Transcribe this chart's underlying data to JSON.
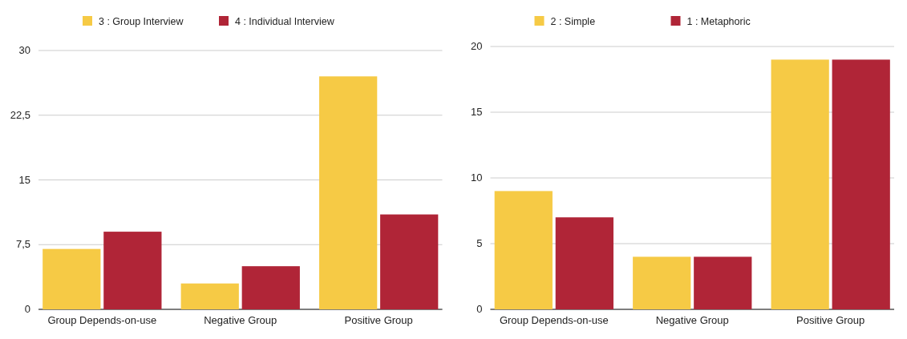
{
  "chart_data": [
    {
      "type": "bar",
      "categories": [
        "Group Depends-on-use",
        "Negative Group",
        "Positive Group"
      ],
      "series": [
        {
          "name": "3 : Group Interview",
          "color": "#f6ca45",
          "values": [
            7,
            3,
            27
          ]
        },
        {
          "name": "4 : Individual Interview",
          "color": "#b02537",
          "values": [
            9,
            5,
            11
          ]
        }
      ],
      "ylim": [
        0,
        30
      ],
      "yticks": [
        0,
        {
          "value": 7.5,
          "label": "7,5"
        },
        15,
        {
          "value": 22.5,
          "label": "22,5"
        },
        30
      ],
      "grid": "y",
      "legend": "top"
    },
    {
      "type": "bar",
      "categories": [
        "Group Depends-on-use",
        "Negative Group",
        "Positive Group"
      ],
      "series": [
        {
          "name": "2 : Simple",
          "color": "#f6ca45",
          "values": [
            9,
            4,
            19
          ]
        },
        {
          "name": "1 : Metaphoric",
          "color": "#b02537",
          "values": [
            7,
            4,
            19
          ]
        }
      ],
      "ylim": [
        0,
        20
      ],
      "yticks": [
        0,
        5,
        10,
        15,
        20
      ],
      "grid": "y",
      "legend": "top"
    }
  ]
}
